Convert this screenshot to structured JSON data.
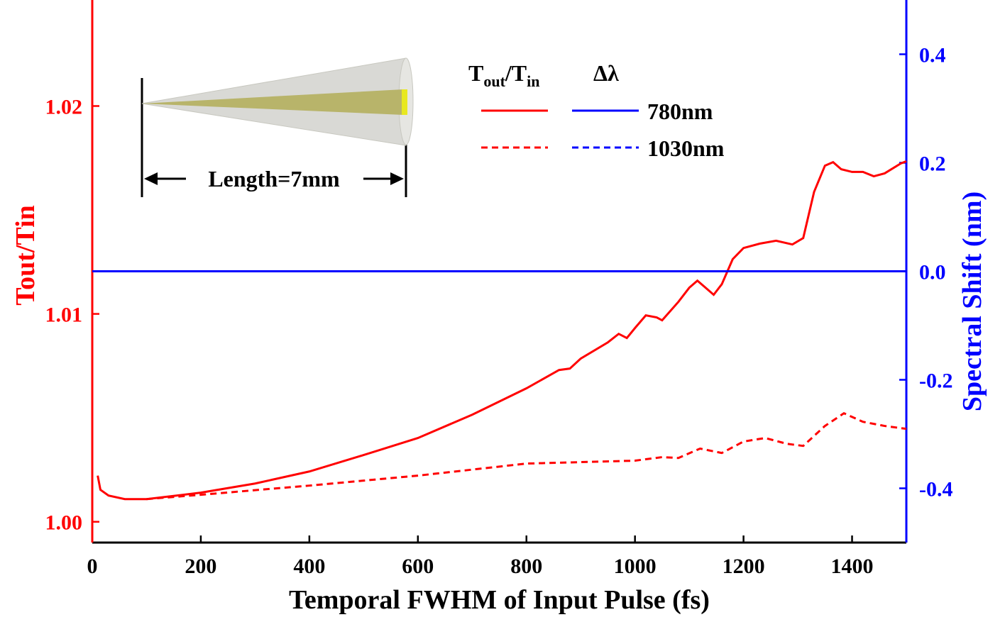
{
  "chart_data": {
    "type": "line",
    "xlabel": "Temporal FWHM of Input Pulse (fs)",
    "ylabel": "Tout/Tin",
    "y2label": "Spectral Shift (nm)",
    "annotation": "Length=7mm",
    "legend_headers": [
      {
        "parts": [
          "T",
          "out",
          "/T",
          "in"
        ]
      },
      "Δλ"
    ],
    "xlim": [
      0,
      1500
    ],
    "xticks": [
      0,
      200,
      400,
      600,
      800,
      1000,
      1200,
      1400
    ],
    "ylim": [
      0.999,
      1.0251
    ],
    "yticks": [
      {
        "value": 1.0,
        "label": "1.00"
      },
      1.01,
      1.02
    ],
    "y2lim": [
      -0.5,
      0.5
    ],
    "y2ticks": [
      -0.4,
      -0.2,
      {
        "value": 0,
        "label": "0.0"
      },
      0.2,
      0.4
    ],
    "series": [
      {
        "name": "780nm",
        "color": "#ff0000",
        "dash": false,
        "axis": "y",
        "x": [
          10,
          15,
          30,
          60,
          100,
          200,
          300,
          400,
          500,
          600,
          700,
          800,
          860,
          880,
          900,
          950,
          970,
          985,
          1000,
          1020,
          1040,
          1050,
          1080,
          1100,
          1115,
          1130,
          1145,
          1160,
          1180,
          1200,
          1230,
          1260,
          1290,
          1310,
          1330,
          1350,
          1365,
          1380,
          1400,
          1420,
          1440,
          1460,
          1490,
          1500
        ],
        "values": [
          1.00222,
          1.00154,
          1.00126,
          1.00109,
          1.00109,
          1.0014,
          1.00184,
          1.00242,
          1.00321,
          1.00403,
          1.00515,
          1.00642,
          1.0073,
          1.00737,
          1.00785,
          1.00863,
          1.00904,
          1.00884,
          1.00932,
          1.00993,
          1.00983,
          1.00969,
          1.01058,
          1.01126,
          1.0116,
          1.01126,
          1.01092,
          1.01143,
          1.01263,
          1.01317,
          1.01338,
          1.01352,
          1.01334,
          1.01365,
          1.01587,
          1.01713,
          1.0173,
          1.01696,
          1.01683,
          1.01683,
          1.01662,
          1.01676,
          1.01724,
          1.01734
        ]
      },
      {
        "name": "1030nm",
        "color": "#ff0000",
        "dash": true,
        "axis": "y",
        "x": [
          100,
          200,
          400,
          600,
          800,
          1000,
          1050,
          1080,
          1120,
          1160,
          1200,
          1240,
          1280,
          1310,
          1350,
          1385,
          1420,
          1460,
          1500
        ],
        "values": [
          1.00109,
          1.0013,
          1.00174,
          1.00222,
          1.0028,
          1.00294,
          1.00311,
          1.00307,
          1.00352,
          1.00331,
          1.00386,
          1.00403,
          1.00375,
          1.00365,
          1.00461,
          1.00522,
          1.00481,
          1.00461,
          1.00447
        ]
      },
      {
        "name": "780nm",
        "color": "#0000ff",
        "dash": false,
        "axis": "y2",
        "x": [
          0,
          1500
        ],
        "values": [
          0,
          0
        ]
      },
      {
        "name": "1030nm",
        "color": "#0000ff",
        "dash": true,
        "axis": "y2",
        "x": [
          0,
          1500
        ],
        "values": [
          0,
          0
        ]
      }
    ]
  }
}
